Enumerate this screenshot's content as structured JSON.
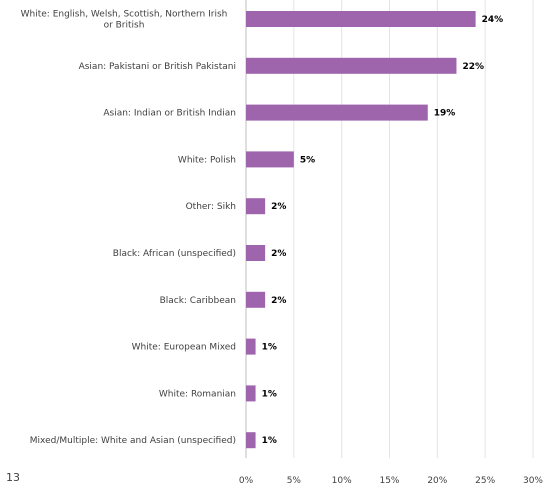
{
  "page_number": "13",
  "chart_data": {
    "type": "bar",
    "orientation": "horizontal",
    "categories": [
      "White: English, Welsh, Scottish, Northern Irish or British",
      "Asian: Pakistani or British Pakistani",
      "Asian: Indian or British Indian",
      "White: Polish",
      "Other: Sikh",
      "Black: African (unspecified)",
      "Black: Caribbean",
      "White: European Mixed",
      "White: Romanian",
      "Mixed/Multiple: White and Asian (unspecified)"
    ],
    "values": [
      24,
      22,
      19,
      5,
      2,
      2,
      2,
      1,
      1,
      1
    ],
    "data_labels": [
      "24%",
      "22%",
      "19%",
      "5%",
      "2%",
      "2%",
      "2%",
      "1%",
      "1%",
      "1%"
    ],
    "xticks": [
      "0%",
      "5%",
      "10%",
      "15%",
      "20%",
      "25%",
      "30%"
    ],
    "xlim": [
      0,
      30
    ],
    "grid": true,
    "bar_color": "#9e65ad",
    "title": "",
    "xlabel": "",
    "ylabel": ""
  }
}
